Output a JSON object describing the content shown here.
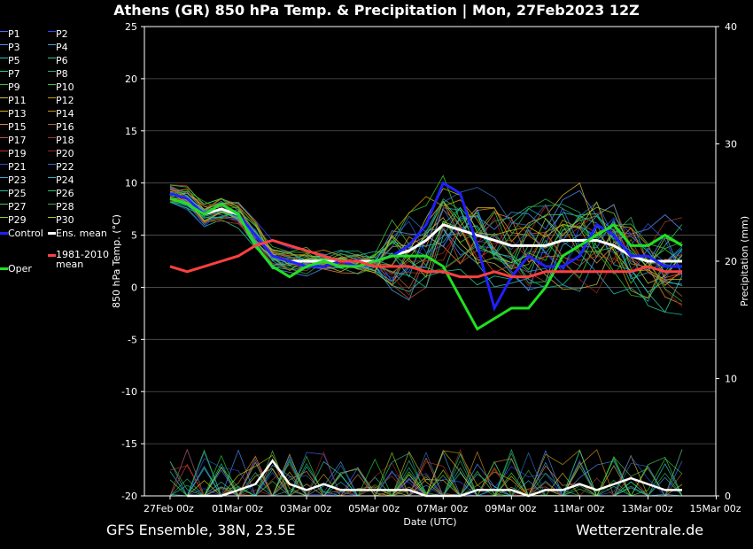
{
  "title": "Athens  (GR)  850 hPa Temp. & Precipitation | Mon, 27Feb2023 12Z",
  "footer": {
    "left": "GFS Ensemble, 38N, 23.5E",
    "right": "Wetterzentrale.de"
  },
  "legend": {
    "members": [
      {
        "label": "P1",
        "color": "#4a6cff"
      },
      {
        "label": "P2",
        "color": "#2b4bff"
      },
      {
        "label": "P3",
        "color": "#4f8dff"
      },
      {
        "label": "P4",
        "color": "#3aa0e0"
      },
      {
        "label": "P5",
        "color": "#2fc0c0"
      },
      {
        "label": "P6",
        "color": "#20d0a0"
      },
      {
        "label": "P7",
        "color": "#30c8a0"
      },
      {
        "label": "P8",
        "color": "#2ab070"
      },
      {
        "label": "P9",
        "color": "#40c040"
      },
      {
        "label": "P10",
        "color": "#30d030"
      },
      {
        "label": "P11",
        "color": "#c8c040"
      },
      {
        "label": "P12",
        "color": "#d0a000"
      },
      {
        "label": "P13",
        "color": "#d8b020"
      },
      {
        "label": "P14",
        "color": "#d09020"
      },
      {
        "label": "P15",
        "color": "#e08040"
      },
      {
        "label": "P16",
        "color": "#b06030"
      },
      {
        "label": "P17",
        "color": "#c05030"
      },
      {
        "label": "P18",
        "color": "#a04020"
      },
      {
        "label": "P19",
        "color": "#c03020"
      },
      {
        "label": "P20",
        "color": "#a02020"
      },
      {
        "label": "P21",
        "color": "#3050d0"
      },
      {
        "label": "P22",
        "color": "#3070c0"
      },
      {
        "label": "P23",
        "color": "#40a0d0"
      },
      {
        "label": "P24",
        "color": "#30b0c0"
      },
      {
        "label": "P25",
        "color": "#20c090"
      },
      {
        "label": "P26",
        "color": "#30c070"
      },
      {
        "label": "P27",
        "color": "#40d050"
      },
      {
        "label": "P28",
        "color": "#30b040"
      },
      {
        "label": "P29",
        "color": "#90d030"
      },
      {
        "label": "P30",
        "color": "#c0c020"
      }
    ],
    "control": {
      "label": "Control",
      "color": "#2020ff"
    },
    "ens_mean": {
      "label": "Ens. mean",
      "color": "#ffffff"
    },
    "oper": {
      "label": "Oper",
      "color": "#20e020"
    },
    "clim": {
      "label": "1981-2010\nmean",
      "color": "#ff4040"
    }
  },
  "chart_data": {
    "type": "line",
    "title": "Athens  (GR)  850 hPa Temp. & Precipitation | Mon, 27Feb2023 12Z",
    "xlabel": "Date (UTC)",
    "ylabel": "850 hPa Temp. (°C)",
    "y2label": "Precipitation (mm)",
    "x_ticks": [
      "27Feb 00z",
      "01Mar 00z",
      "03Mar 00z",
      "05Mar 00z",
      "07Mar 00z",
      "09Mar 00z",
      "11Mar 00z",
      "13Mar 00z",
      "15Mar 00z"
    ],
    "xlim_days": [
      0,
      16
    ],
    "ylim": [
      -20,
      25
    ],
    "y_ticks": [
      -20,
      -15,
      -10,
      -5,
      0,
      5,
      10,
      15,
      20,
      25
    ],
    "y2lim": [
      0,
      40
    ],
    "y2_ticks": [
      0,
      10,
      20,
      30,
      40
    ],
    "grid": "horizontal",
    "series": [
      {
        "name": "Ens. mean",
        "x": [
          1.5,
          2,
          2.5,
          3,
          3.5,
          4,
          4.5,
          5,
          5.5,
          6,
          6.5,
          7,
          7.5,
          8,
          8.5,
          9,
          9.5,
          10,
          10.5,
          11,
          11.5,
          12,
          12.5,
          13,
          13.5,
          14,
          14.5,
          15,
          15.5,
          16,
          16.5
        ],
        "values": [
          9,
          8.5,
          7,
          7.5,
          7,
          5,
          3,
          2.5,
          2.5,
          2.5,
          2.5,
          2.5,
          2.5,
          3,
          3.5,
          4.5,
          6,
          5.5,
          5,
          4.5,
          4,
          4,
          4,
          4.5,
          4.5,
          4.5,
          4,
          3,
          2.5,
          2.5,
          2.5
        ]
      },
      {
        "name": "Control",
        "x": [
          1.5,
          2,
          2.5,
          3,
          3.5,
          4,
          4.5,
          5,
          5.5,
          6,
          6.5,
          7,
          7.5,
          8,
          8.5,
          9,
          9.5,
          10,
          10.5,
          11,
          11.5,
          12,
          12.5,
          13,
          13.5,
          14,
          14.5,
          15,
          15.5,
          16,
          16.5
        ],
        "values": [
          9,
          8.5,
          7,
          8,
          7,
          5,
          3,
          2.5,
          2,
          2,
          2.5,
          2,
          2.5,
          3,
          4,
          6,
          10,
          9,
          4,
          -2,
          1,
          3,
          2,
          2,
          3,
          6,
          5,
          3,
          3,
          2,
          2
        ]
      },
      {
        "name": "Oper",
        "x": [
          1.5,
          2,
          2.5,
          3,
          3.5,
          4,
          4.5,
          5,
          5.5,
          6,
          6.5,
          7,
          7.5,
          8,
          8.5,
          9,
          9.5,
          10,
          10.5,
          11,
          11.5,
          12,
          12.5,
          13,
          13.5,
          14,
          14.5,
          15,
          15.5,
          16,
          16.5
        ],
        "values": [
          8.5,
          8,
          7,
          8,
          7,
          4,
          2,
          1,
          2,
          2.5,
          2,
          2,
          2.5,
          3,
          3,
          3,
          2,
          -1,
          -4,
          -3,
          -2,
          -2,
          0,
          3,
          4,
          5,
          6,
          4,
          4,
          5,
          4
        ]
      },
      {
        "name": "1981-2010 mean",
        "x": [
          1.5,
          2,
          2.5,
          3,
          3.5,
          4,
          4.5,
          5,
          5.5,
          6,
          6.5,
          7,
          7.5,
          8,
          8.5,
          9,
          9.5,
          10,
          10.5,
          11,
          11.5,
          12,
          12.5,
          13,
          13.5,
          14,
          14.5,
          15,
          15.5,
          16,
          16.5
        ],
        "values": [
          2,
          1.5,
          2,
          2.5,
          3,
          4,
          4.5,
          4,
          3.5,
          3,
          2.5,
          2.5,
          2,
          2,
          2,
          1.5,
          1.5,
          1,
          1,
          1.5,
          1,
          1,
          1.5,
          1.5,
          1.5,
          1.5,
          1.5,
          1.5,
          2,
          1.5,
          1.5
        ]
      }
    ],
    "precip_mean_mm": {
      "x": [
        2,
        3,
        4,
        4.5,
        5,
        5.5,
        6,
        6.5,
        7,
        7.5,
        8,
        8.5,
        9,
        9.5,
        10,
        10.5,
        11,
        11.5,
        12,
        12.5,
        13,
        13.5,
        14,
        14.5,
        15,
        15.5,
        16,
        16.5
      ],
      "values": [
        0,
        0,
        1,
        3,
        1,
        0.5,
        1,
        0.5,
        0.5,
        0.5,
        0.5,
        0.5,
        0,
        0,
        0,
        0.5,
        0.5,
        0.5,
        0,
        0.5,
        0.5,
        1,
        0.5,
        1,
        1.5,
        1,
        0.5,
        0.5
      ]
    }
  }
}
